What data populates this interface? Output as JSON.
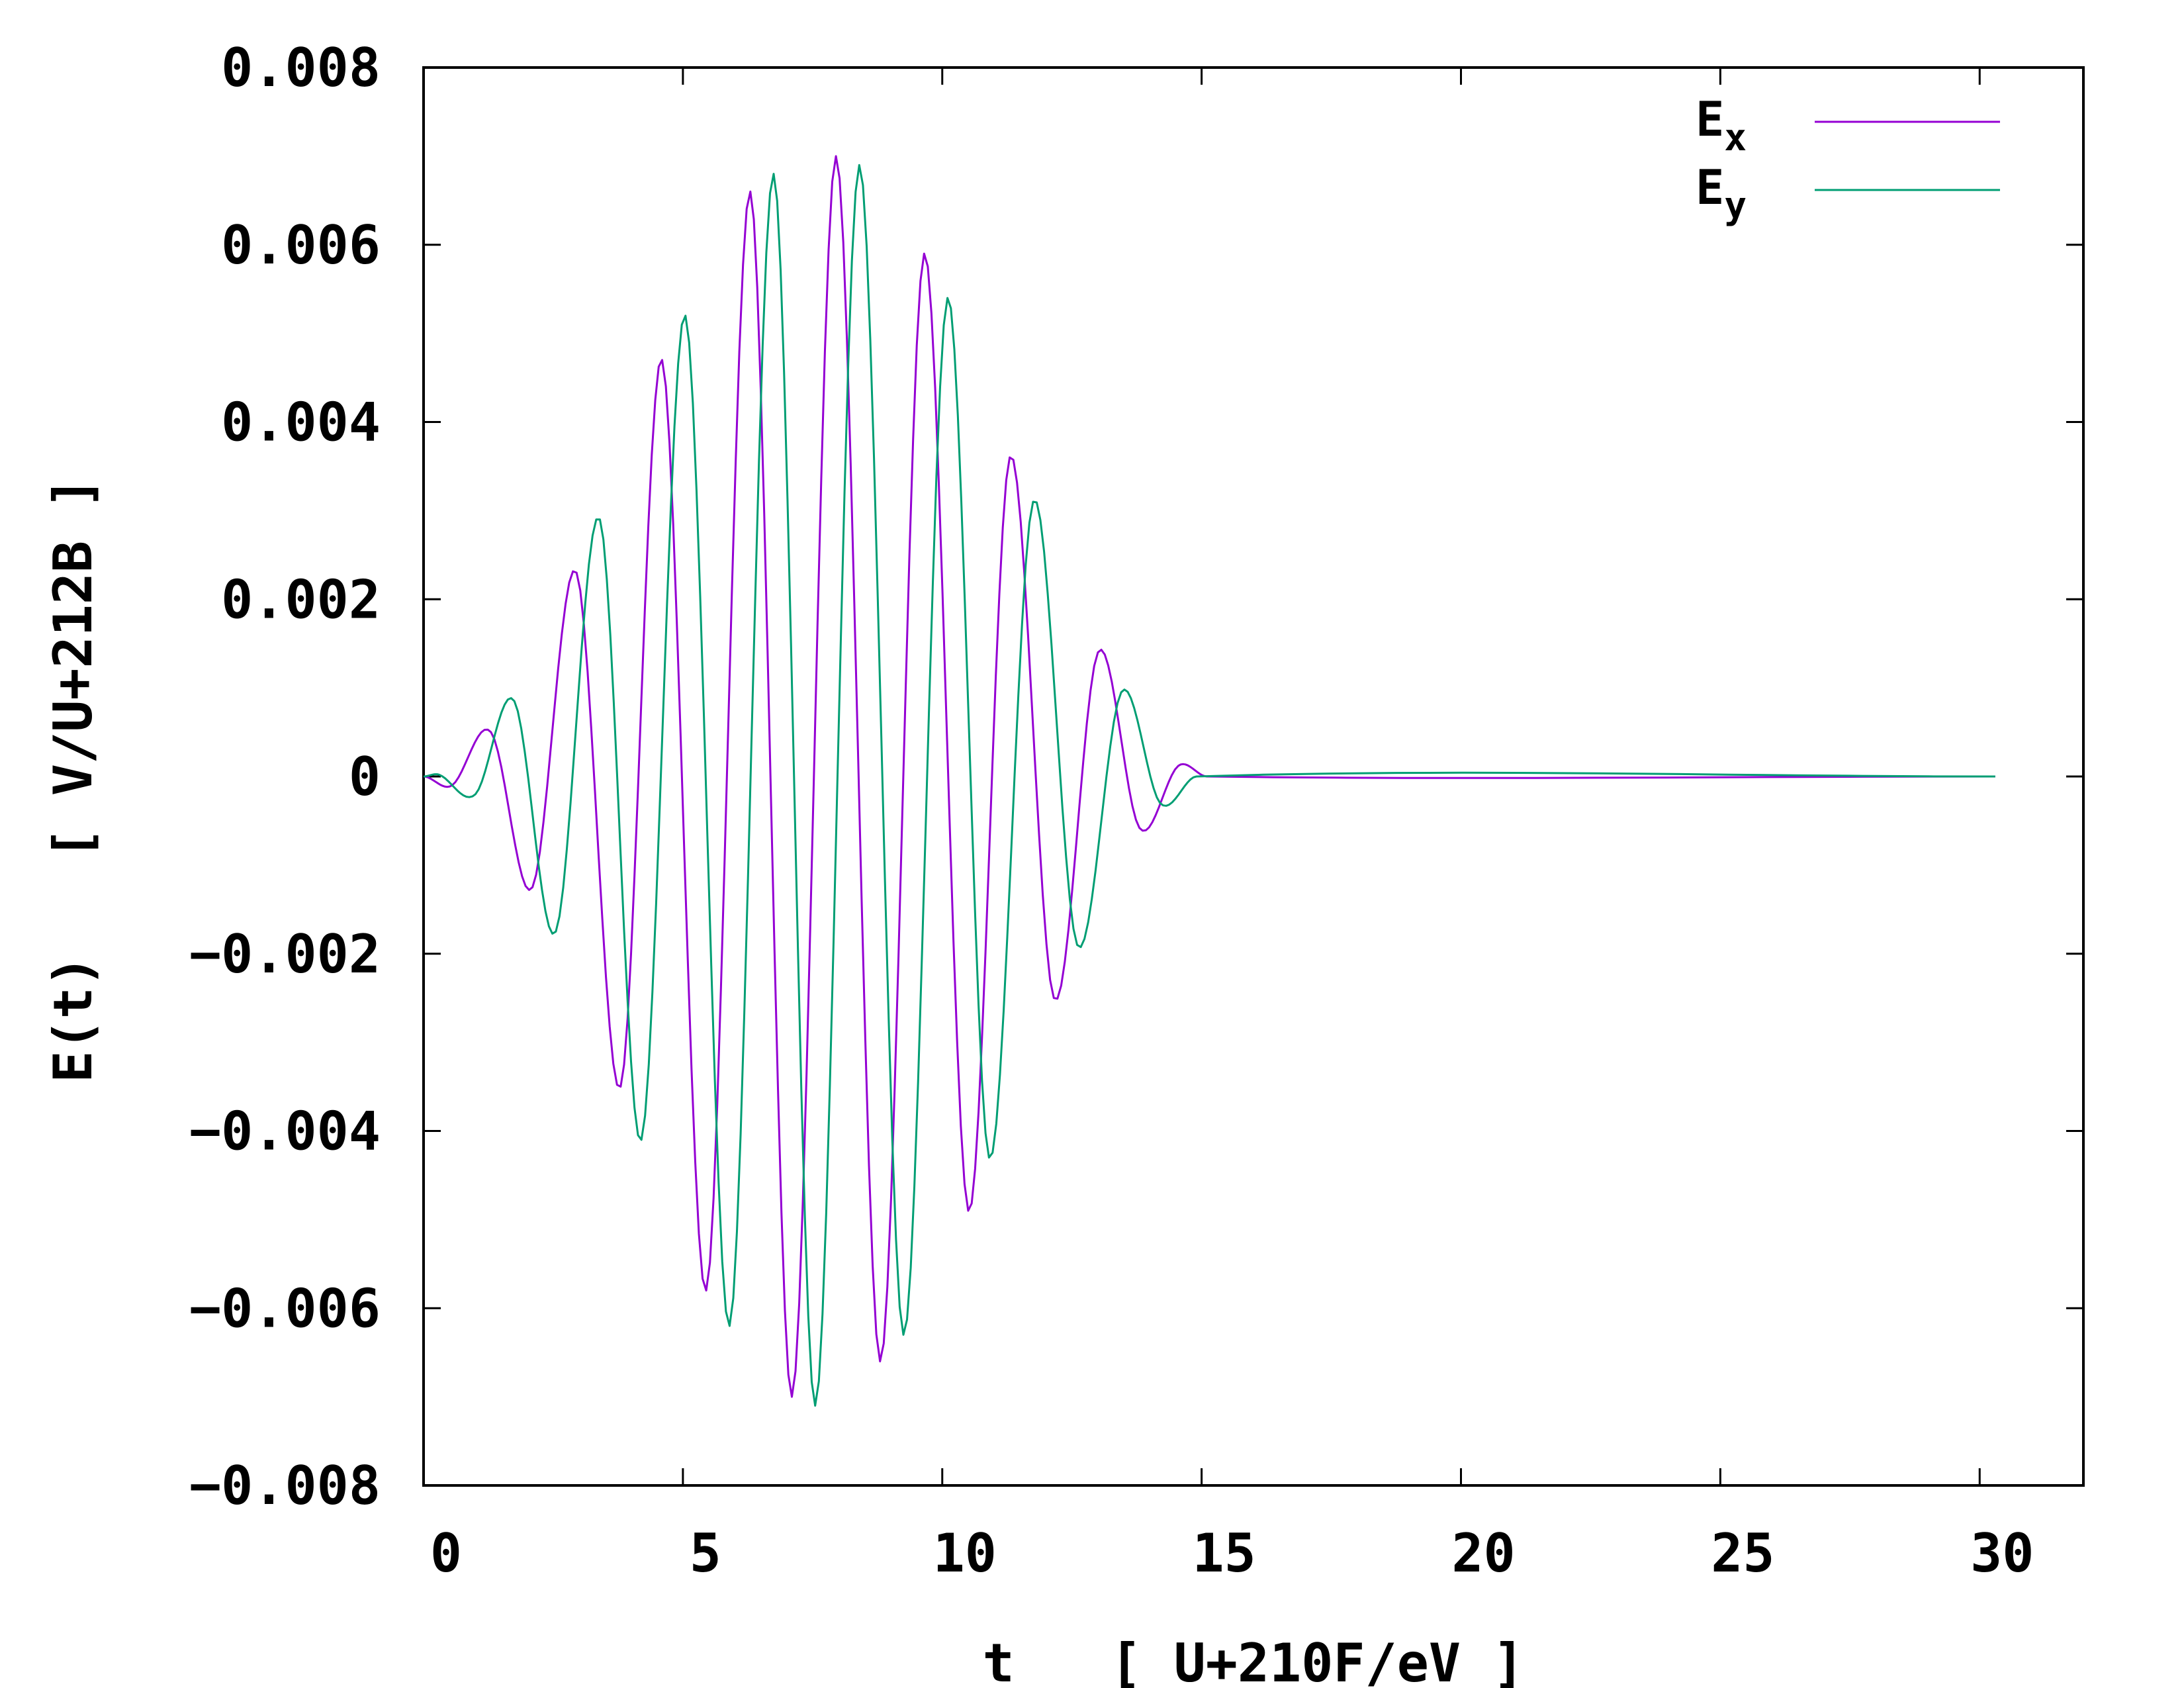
{
  "chart_data": {
    "type": "line",
    "title": "",
    "xlabel": "t   [ U+210F/eV ]",
    "ylabel": "E(t)   [ V/U+212B ]",
    "xlim": [
      0,
      32
    ],
    "ylim": [
      -0.008,
      0.008
    ],
    "x_ticks": [
      0,
      5,
      10,
      15,
      20,
      25,
      30
    ],
    "x_tick_labels": [
      "0",
      "5",
      "10",
      "15",
      "20",
      "25",
      "30"
    ],
    "y_ticks": [
      -0.008,
      -0.006,
      -0.004,
      -0.002,
      0,
      0.002,
      0.004,
      0.006,
      0.008
    ],
    "y_tick_labels": [
      "−0.008",
      "−0.006",
      "−0.004",
      "−0.002",
      "0",
      "0.002",
      "0.004",
      "0.006",
      "0.008"
    ],
    "grid": false,
    "legend_position": "top-right",
    "series": [
      {
        "name": "E",
        "subscript": "x",
        "color": "#9400d3",
        "x": [
          0,
          0.55,
          1.3,
          2.1,
          2.95,
          3.8,
          4.6,
          5.45,
          6.3,
          7.1,
          7.95,
          8.8,
          9.65,
          10.5,
          11.3,
          12.15,
          13.0,
          13.8,
          14.55,
          15.1,
          30.3
        ],
        "y": [
          0,
          -0.0001,
          0.0005,
          -0.00125,
          0.0023,
          -0.0035,
          0.0047,
          -0.0058,
          0.0066,
          -0.007,
          0.007,
          -0.0066,
          0.0059,
          -0.0049,
          0.0036,
          -0.0025,
          0.0014,
          -0.00058,
          0.00012,
          0,
          0
        ]
      },
      {
        "name": "E",
        "subscript": "y",
        "color": "#009e73",
        "x": [
          0,
          0.3,
          1.0,
          1.75,
          2.55,
          3.4,
          4.2,
          5.05,
          5.9,
          6.75,
          7.55,
          8.4,
          9.25,
          10.1,
          10.9,
          11.75,
          12.6,
          13.45,
          14.2,
          14.9,
          30.3
        ],
        "y": [
          0,
          2e-05,
          -0.0002,
          0.00085,
          -0.00175,
          0.0029,
          -0.0041,
          0.0052,
          -0.0062,
          0.0068,
          -0.0071,
          0.0069,
          -0.0063,
          0.0054,
          -0.0043,
          0.0031,
          -0.0019,
          0.00095,
          -0.0003,
          0,
          0
        ]
      }
    ]
  }
}
